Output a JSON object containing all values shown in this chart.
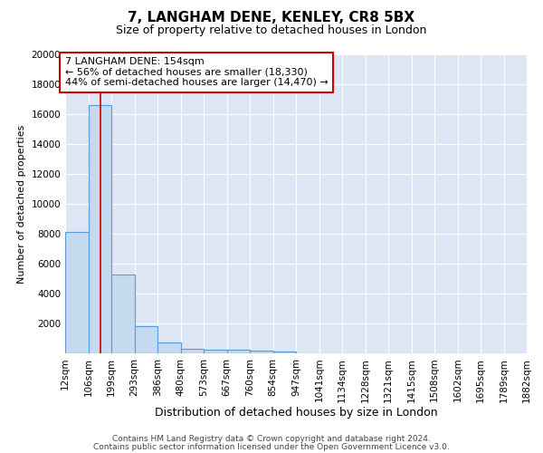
{
  "title1": "7, LANGHAM DENE, KENLEY, CR8 5BX",
  "title2": "Size of property relative to detached houses in London",
  "xlabel": "Distribution of detached houses by size in London",
  "ylabel": "Number of detached properties",
  "bin_edges": [
    12,
    106,
    199,
    293,
    386,
    480,
    573,
    667,
    760,
    854,
    947,
    1041,
    1134,
    1228,
    1321,
    1415,
    1508,
    1602,
    1695,
    1789,
    1882
  ],
  "bin_labels": [
    "12sqm",
    "106sqm",
    "199sqm",
    "293sqm",
    "386sqm",
    "480sqm",
    "573sqm",
    "667sqm",
    "760sqm",
    "854sqm",
    "947sqm",
    "1041sqm",
    "1134sqm",
    "1228sqm",
    "1321sqm",
    "1415sqm",
    "1508sqm",
    "1602sqm",
    "1695sqm",
    "1789sqm",
    "1882sqm"
  ],
  "bar_heights": [
    8100,
    16600,
    5300,
    1800,
    700,
    300,
    230,
    220,
    210,
    150,
    0,
    0,
    0,
    0,
    0,
    0,
    0,
    0,
    0,
    0
  ],
  "bar_color": "#c5d9ef",
  "bar_edge_color": "#5b9bd5",
  "bg_color": "#dce6f5",
  "grid_color": "#ffffff",
  "red_line_x": 154,
  "annotation_line1": "7 LANGHAM DENE: 154sqm",
  "annotation_line2": "← 56% of detached houses are smaller (18,330)",
  "annotation_line3": "44% of semi-detached houses are larger (14,470) →",
  "annotation_box_color": "#ffffff",
  "annotation_border_color": "#cc0000",
  "ylim": [
    0,
    20000
  ],
  "yticks": [
    0,
    2000,
    4000,
    6000,
    8000,
    10000,
    12000,
    14000,
    16000,
    18000,
    20000
  ],
  "footer1": "Contains HM Land Registry data © Crown copyright and database right 2024.",
  "footer2": "Contains public sector information licensed under the Open Government Licence v3.0.",
  "title1_fontsize": 11,
  "title2_fontsize": 9,
  "ylabel_fontsize": 8,
  "xlabel_fontsize": 9,
  "tick_fontsize": 7.5,
  "annotation_fontsize": 8,
  "footer_fontsize": 6.5
}
